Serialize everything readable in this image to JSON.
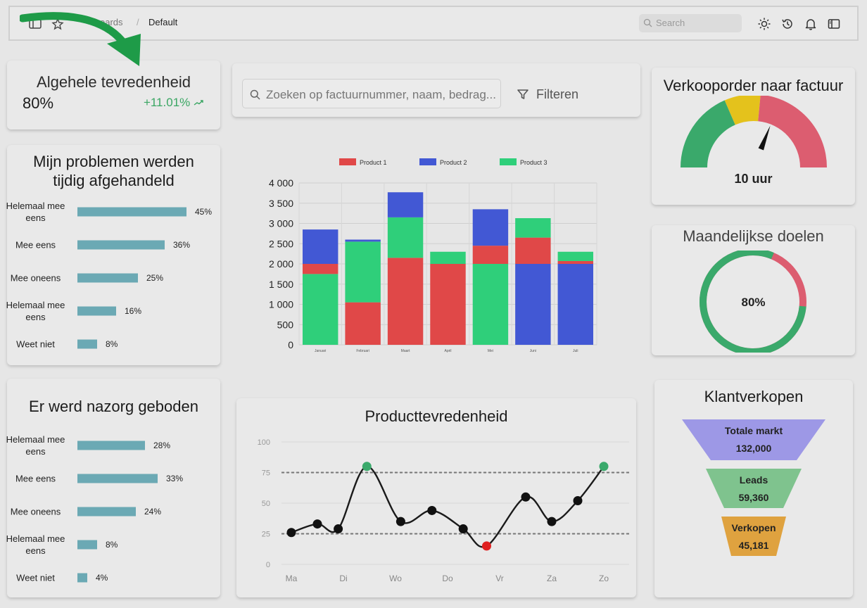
{
  "topbar": {
    "breadcrumb": [
      "oards",
      "Default"
    ],
    "breadcrumb_sep": "/",
    "search_placeholder": "Search",
    "icons": [
      "sidebar-toggle-icon",
      "star-icon",
      "sun-icon",
      "history-icon",
      "bell-icon",
      "panel-icon"
    ]
  },
  "satisfaction": {
    "title": "Algehele tevredenheid",
    "value": "80%",
    "delta": "+11.01%"
  },
  "issues": {
    "title": "Mijn problemen werden tijdig afgehandeld",
    "rows": [
      {
        "label": "Helemaal mee eens",
        "pct": "45%",
        "value": 45
      },
      {
        "label": "Mee eens",
        "pct": "36%",
        "value": 36
      },
      {
        "label": "Mee oneens",
        "pct": "25%",
        "value": 25
      },
      {
        "label": "Helemaal mee eens",
        "pct": "16%",
        "value": 16
      },
      {
        "label": "Weet niet",
        "pct": "8%",
        "value": 8
      }
    ]
  },
  "aftercare": {
    "title": "Er werd nazorg geboden",
    "rows": [
      {
        "label": "Helemaal mee eens",
        "pct": "28%",
        "value": 28
      },
      {
        "label": "Mee eens",
        "pct": "33%",
        "value": 33
      },
      {
        "label": "Mee oneens",
        "pct": "24%",
        "value": 24
      },
      {
        "label": "Helemaal mee eens",
        "pct": "8%",
        "value": 8
      },
      {
        "label": "Weet niet",
        "pct": "4%",
        "value": 4
      }
    ]
  },
  "search_filter": {
    "placeholder": "Zoeken op factuurnummer, naam, bedrag...",
    "filter_label": "Filteren"
  },
  "stacked_chart": {
    "type": "bar",
    "legend": [
      "Product 1",
      "Product 2",
      "Product 3"
    ],
    "colors": {
      "Product 1": "#e04848",
      "Product 2": "#4258d4",
      "Product 3": "#2fcf7a"
    },
    "categories": [
      "Januari",
      "Februari",
      "Maart",
      "April",
      "Mei",
      "Juni",
      "Juli"
    ],
    "y_ticks": [
      "0",
      "500",
      "1 000",
      "1 500",
      "2 000",
      "2 500",
      "3 000",
      "3 500",
      "4 000"
    ],
    "ylim": [
      0,
      4000
    ],
    "segments": [
      [
        {
          "s": "Product 3",
          "v": 1750
        },
        {
          "s": "Product 1",
          "v": 250
        },
        {
          "s": "Product 2",
          "v": 850
        }
      ],
      [
        {
          "s": "Product 1",
          "v": 1050
        },
        {
          "s": "Product 3",
          "v": 1500
        },
        {
          "s": "Product 2",
          "v": 50
        }
      ],
      [
        {
          "s": "Product 1",
          "v": 2150
        },
        {
          "s": "Product 3",
          "v": 1000
        },
        {
          "s": "Product 2",
          "v": 620
        }
      ],
      [
        {
          "s": "Product 1",
          "v": 2000
        },
        {
          "s": "Product 3",
          "v": 300
        }
      ],
      [
        {
          "s": "Product 3",
          "v": 2000
        },
        {
          "s": "Product 1",
          "v": 450
        },
        {
          "s": "Product 2",
          "v": 900
        }
      ],
      [
        {
          "s": "Product 2",
          "v": 2000
        },
        {
          "s": "Product 1",
          "v": 650
        },
        {
          "s": "Product 3",
          "v": 480
        }
      ],
      [
        {
          "s": "Product 2",
          "v": 2000
        },
        {
          "s": "Product 1",
          "v": 70
        },
        {
          "s": "Product 3",
          "v": 230
        }
      ]
    ]
  },
  "order_gauge": {
    "title": "Verkooporder naar factuur",
    "label": "10 uur",
    "needle_fraction": 0.62,
    "colors": [
      "#3aa96b",
      "#e4c21c",
      "#dc5d70"
    ]
  },
  "monthly_goals": {
    "title": "Maandelijkse doelen",
    "value": "80%",
    "fraction": 0.8,
    "colors": {
      "done": "#3aa96b",
      "rest": "#dc5d70"
    }
  },
  "product_satisfaction": {
    "type": "line",
    "title": "Producttevredenheid",
    "x_labels": [
      "Ma",
      "Di",
      "Wo",
      "Do",
      "Vr",
      "Za",
      "Zo"
    ],
    "y_ticks": [
      "0",
      "25",
      "50",
      "75",
      "100"
    ],
    "ylim": [
      0,
      100
    ],
    "reference_lines": [
      25,
      75
    ],
    "points": [
      {
        "x": 0,
        "y": 26,
        "c": "black"
      },
      {
        "x": 0.5,
        "y": 33,
        "c": "black"
      },
      {
        "x": 0.9,
        "y": 29,
        "c": "black"
      },
      {
        "x": 1.45,
        "y": 80,
        "c": "green"
      },
      {
        "x": 2.1,
        "y": 35,
        "c": "black"
      },
      {
        "x": 2.7,
        "y": 44,
        "c": "black"
      },
      {
        "x": 3.3,
        "y": 29,
        "c": "black"
      },
      {
        "x": 3.75,
        "y": 15,
        "c": "red"
      },
      {
        "x": 4.5,
        "y": 55,
        "c": "black"
      },
      {
        "x": 5.0,
        "y": 35,
        "c": "black"
      },
      {
        "x": 5.5,
        "y": 52,
        "c": "black"
      },
      {
        "x": 6.0,
        "y": 80,
        "c": "green"
      }
    ]
  },
  "customer_sales": {
    "title": "Klantverkopen",
    "stages": [
      {
        "label": "Totale markt",
        "value": "132,000",
        "color": "#9d98e6"
      },
      {
        "label": "Leads",
        "value": "59,360",
        "color": "#7fc38e"
      },
      {
        "label": "Verkopen",
        "value": "45,181",
        "color": "#dfa23f"
      }
    ]
  }
}
